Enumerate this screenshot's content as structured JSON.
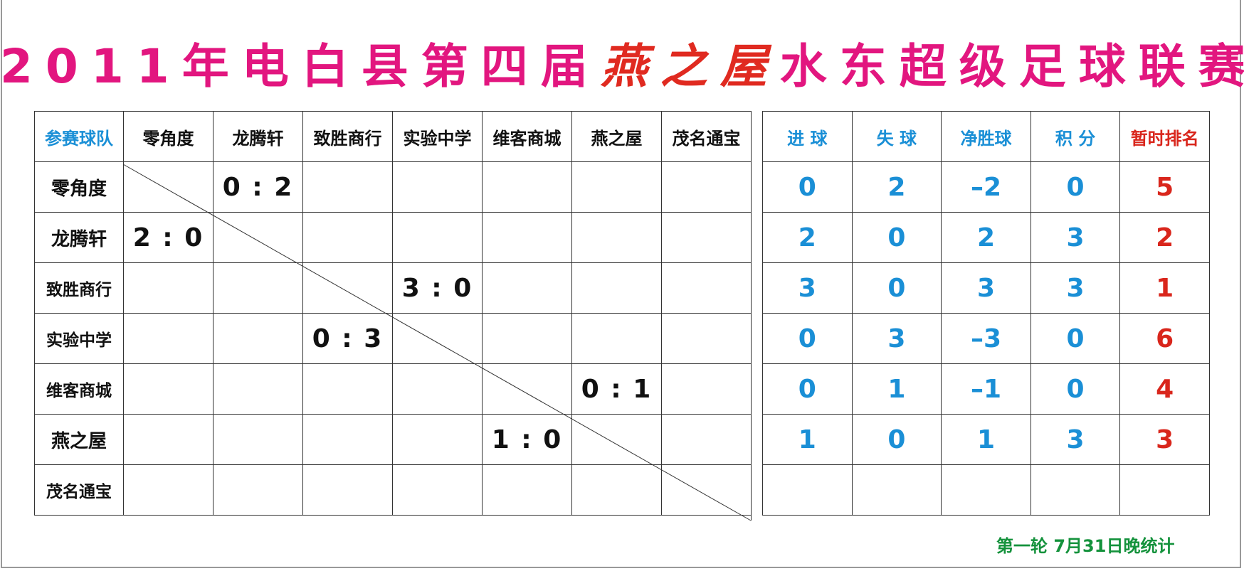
{
  "title": {
    "prefix": "2011年电白县第四届",
    "brand": "燕之屋",
    "suffix": "水东超级足球联赛"
  },
  "colors": {
    "title": "#e2167f",
    "brand": "#e02a20",
    "stats": "#1a8fd6",
    "rank": "#d9261c",
    "footer": "#14923c"
  },
  "matrix": {
    "corner": "参赛球队",
    "teams": [
      "零角度",
      "龙腾轩",
      "致胜商行",
      "实验中学",
      "维客商城",
      "燕之屋",
      "茂名通宝"
    ],
    "scores": [
      [
        "",
        "0 : 2",
        "",
        "",
        "",
        "",
        ""
      ],
      [
        "2 : 0",
        "",
        "",
        "",
        "",
        "",
        ""
      ],
      [
        "",
        "",
        "",
        "3 : 0",
        "",
        "",
        ""
      ],
      [
        "",
        "",
        "0 : 3",
        "",
        "",
        "",
        ""
      ],
      [
        "",
        "",
        "",
        "",
        "",
        "0 : 1",
        ""
      ],
      [
        "",
        "",
        "",
        "",
        "1 : 0",
        "",
        ""
      ],
      [
        "",
        "",
        "",
        "",
        "",
        "",
        ""
      ]
    ]
  },
  "stats": {
    "headers": [
      "进 球",
      "失 球",
      "净胜球",
      "积 分",
      "暂时排名"
    ],
    "rows": [
      [
        "0",
        "2",
        "–2",
        "0",
        "5"
      ],
      [
        "2",
        "0",
        "2",
        "3",
        "2"
      ],
      [
        "3",
        "0",
        "3",
        "3",
        "1"
      ],
      [
        "0",
        "3",
        "–3",
        "0",
        "6"
      ],
      [
        "0",
        "1",
        "–1",
        "0",
        "4"
      ],
      [
        "1",
        "0",
        "1",
        "3",
        "3"
      ],
      [
        "",
        "",
        "",
        "",
        ""
      ]
    ]
  },
  "footer": "第一轮  7月31日晚统计"
}
